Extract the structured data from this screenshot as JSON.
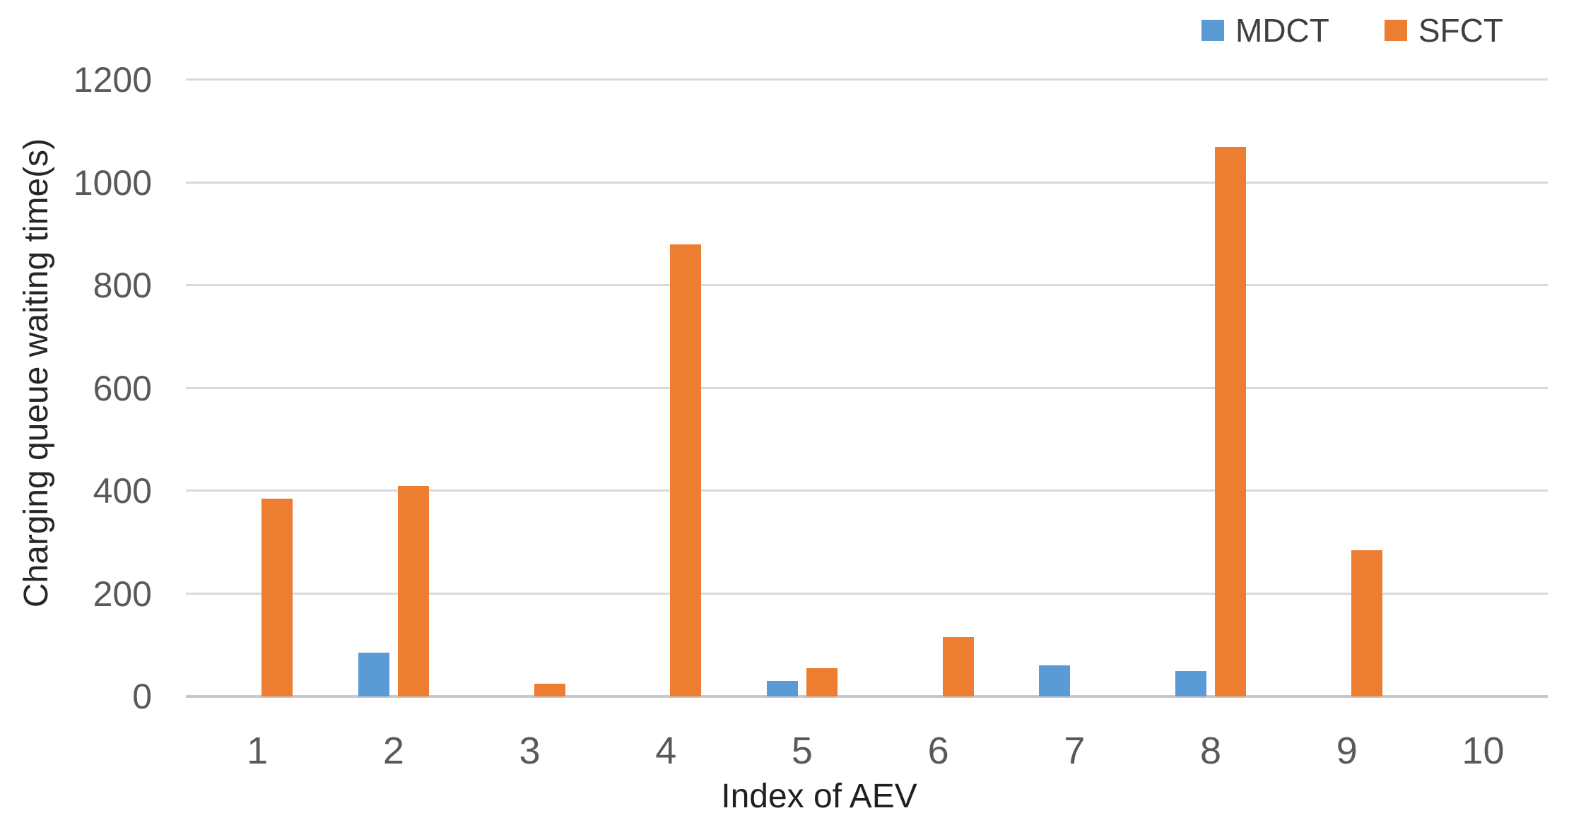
{
  "chart_data": {
    "type": "bar",
    "title": "",
    "xlabel": "Index of AEV",
    "ylabel": "Charging queue waiting time(s)",
    "categories": [
      "1",
      "2",
      "3",
      "4",
      "5",
      "6",
      "7",
      "8",
      "9",
      "10"
    ],
    "series": [
      {
        "name": "MDCT",
        "color": "#5b9bd5",
        "values": [
          0,
          85,
          0,
          0,
          30,
          0,
          60,
          50,
          0,
          0
        ]
      },
      {
        "name": "SFCT",
        "color": "#ed7d31",
        "values": [
          385,
          410,
          25,
          880,
          55,
          115,
          0,
          1070,
          285,
          0
        ]
      }
    ],
    "ylim": [
      0,
      1200
    ],
    "yticks": [
      0,
      200,
      400,
      600,
      800,
      1000,
      1200
    ],
    "grid": true,
    "gridline_color": "#d9d9d9",
    "legend_position": "top-right",
    "tick_label_color": "#595959"
  }
}
